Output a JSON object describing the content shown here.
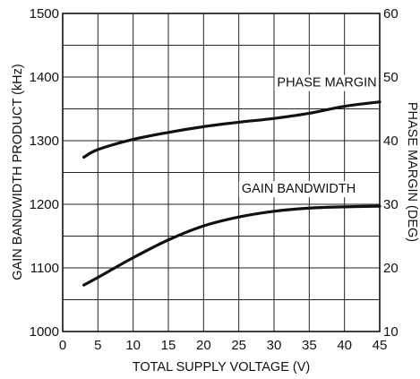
{
  "chart_data": {
    "type": "line",
    "xlabel": "TOTAL SUPPLY VOLTAGE (V)",
    "ylabel_left": "GAIN BANDWIDTH PRODUCT (kHz)",
    "ylabel_right": "PHASE MARGIN (DEG)",
    "xlim": [
      0,
      45
    ],
    "ylim_left": [
      1000,
      1500
    ],
    "ylim_right": [
      10,
      60
    ],
    "x_ticks": [
      0,
      5,
      10,
      15,
      20,
      25,
      30,
      35,
      40,
      45
    ],
    "y_ticks_left": [
      1000,
      1100,
      1200,
      1300,
      1400,
      1500
    ],
    "y_ticks_right": [
      10,
      20,
      30,
      40,
      50,
      60
    ],
    "grid": true,
    "series": [
      {
        "name": "PHASE MARGIN",
        "axis": "right",
        "x": [
          3,
          5,
          10,
          15,
          20,
          25,
          30,
          35,
          40,
          45
        ],
        "y": [
          37.4,
          38.6,
          40.2,
          41.3,
          42.2,
          42.9,
          43.5,
          44.3,
          45.4,
          46.1
        ]
      },
      {
        "name": "GAIN BANDWIDTH",
        "axis": "left",
        "x": [
          3,
          5,
          10,
          15,
          20,
          25,
          30,
          35,
          40,
          45
        ],
        "y": [
          1073,
          1085,
          1116,
          1144,
          1166,
          1180,
          1189,
          1194,
          1196,
          1197
        ]
      }
    ]
  }
}
